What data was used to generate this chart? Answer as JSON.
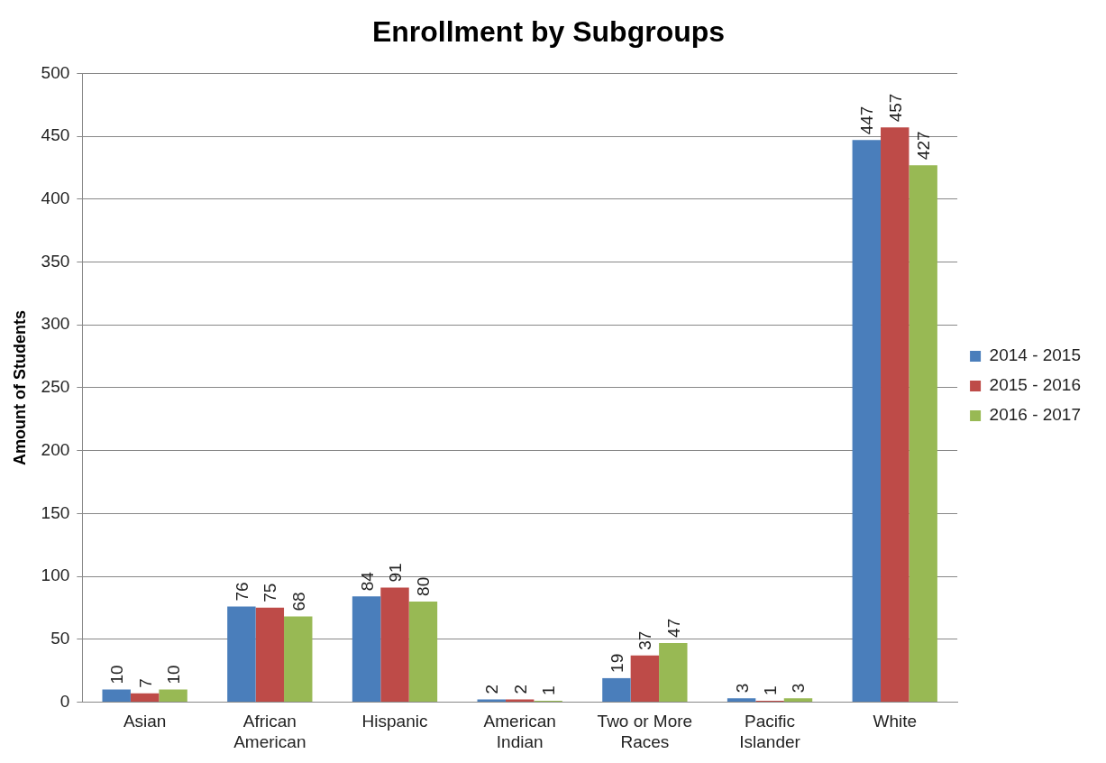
{
  "chart_data": {
    "type": "bar",
    "title": "Enrollment by Subgroups",
    "ylabel": "Amount of Students",
    "categories": [
      "Asian",
      "African American",
      "Hispanic",
      "American Indian",
      "Two or More Races",
      "Pacific Islander",
      "White"
    ],
    "series": [
      {
        "name": "2014 - 2015",
        "color": "#4a7ebb",
        "values": [
          10,
          76,
          84,
          2,
          19,
          3,
          447
        ]
      },
      {
        "name": "2015 - 2016",
        "color": "#be4b48",
        "values": [
          7,
          75,
          91,
          2,
          37,
          1,
          457
        ]
      },
      {
        "name": "2016 - 2017",
        "color": "#98b954",
        "values": [
          10,
          68,
          80,
          1,
          47,
          3,
          427
        ]
      }
    ],
    "ylim": [
      0,
      500
    ],
    "yticks": [
      0,
      50,
      100,
      150,
      200,
      250,
      300,
      350,
      400,
      450,
      500
    ],
    "grid": "y",
    "legend": "right",
    "data_labels": true
  }
}
